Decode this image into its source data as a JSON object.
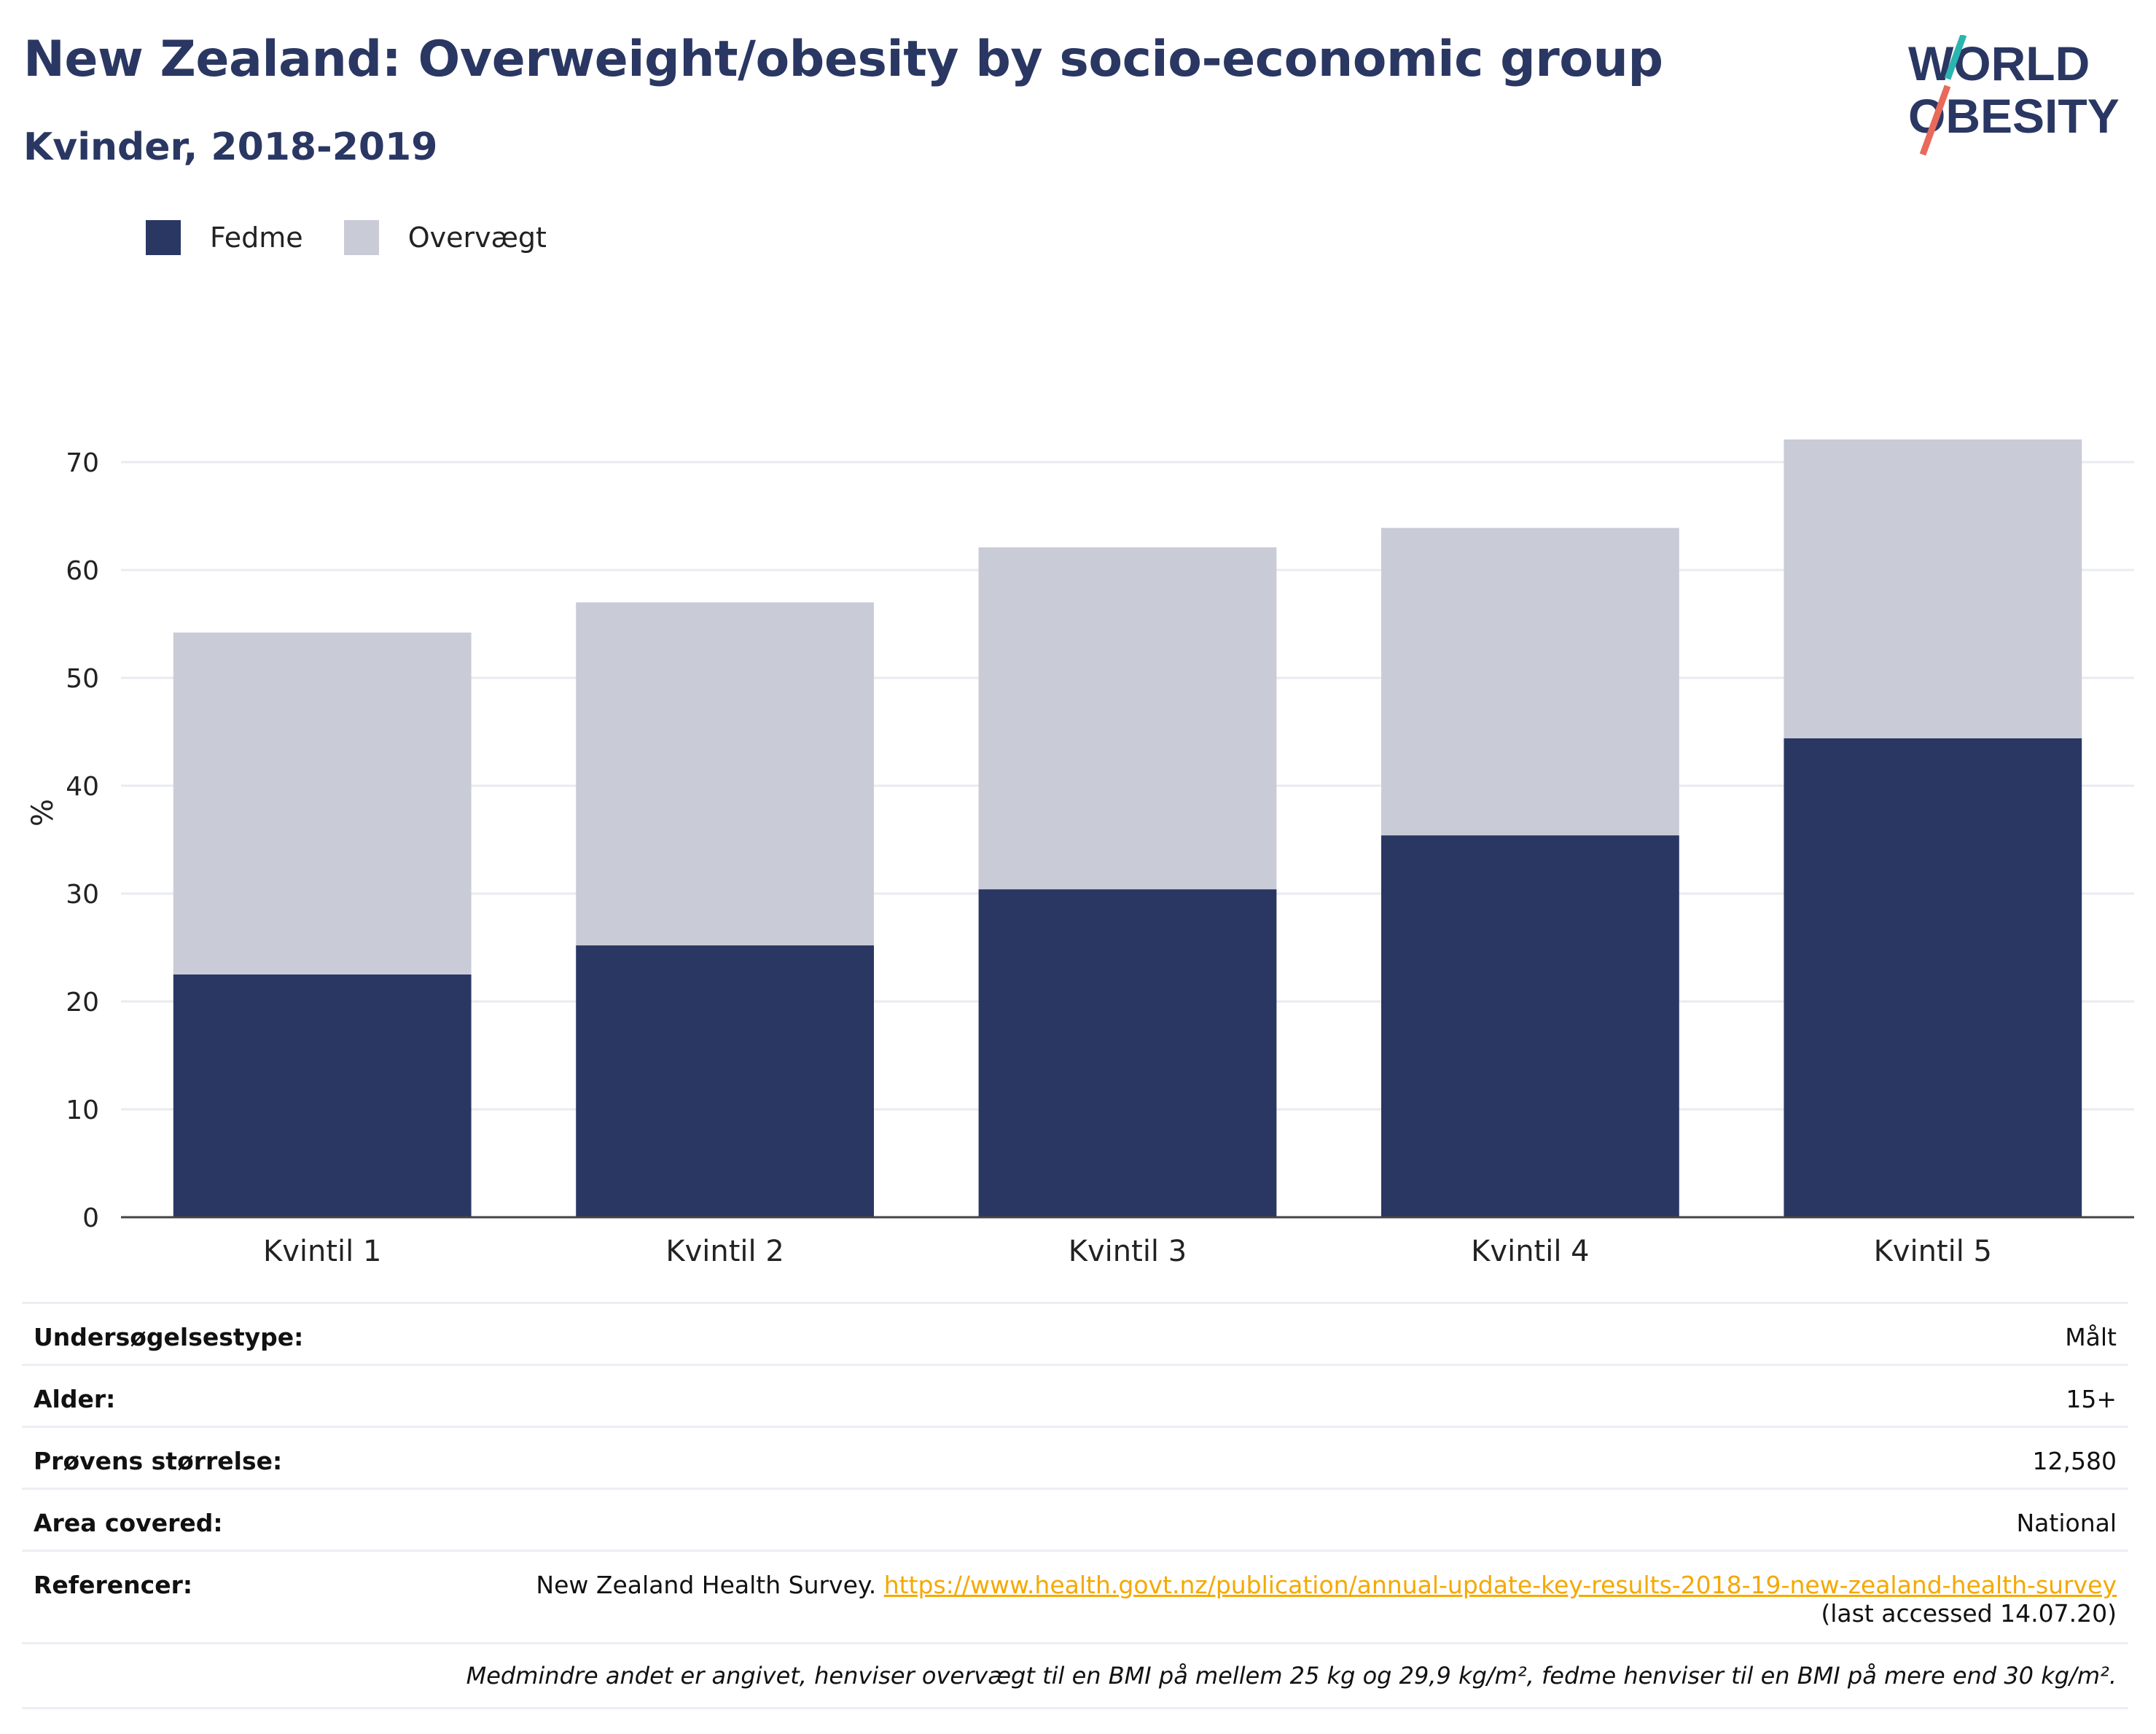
{
  "header": {
    "title": "New Zealand: Overweight/obesity by socio-economic group",
    "subtitle": "Kvinder, 2018-2019"
  },
  "logo": {
    "line1": "WORLD",
    "line2": "OBESITY",
    "accent_teal": "#2bb5b0",
    "accent_coral": "#e9695a"
  },
  "legend": [
    {
      "label": "Fedme",
      "color": "#2a3763"
    },
    {
      "label": "Overvægt",
      "color": "#c9cbd7"
    }
  ],
  "chart_data": {
    "type": "bar",
    "stacked": true,
    "categories": [
      "Kvintil 1",
      "Kvintil 2",
      "Kvintil 3",
      "Kvintil 4",
      "Kvintil 5"
    ],
    "series": [
      {
        "name": "Fedme",
        "color": "#2a3763",
        "values": [
          22.5,
          25.2,
          30.4,
          35.4,
          44.4
        ]
      },
      {
        "name": "Overvægt",
        "color": "#c9cbd7",
        "values": [
          31.7,
          31.8,
          31.7,
          28.5,
          27.7
        ]
      }
    ],
    "ylabel": "%",
    "xlabel": "",
    "ylim": [
      0,
      75
    ],
    "yticks": [
      0,
      10,
      20,
      30,
      40,
      50,
      60,
      70
    ],
    "grid": true,
    "legend_position": "top-left"
  },
  "info": {
    "rows": [
      {
        "key": "Undersøgelsestype:",
        "value": "Målt"
      },
      {
        "key": "Alder:",
        "value": "15+"
      },
      {
        "key": "Prøvens størrelse:",
        "value": "12,580"
      },
      {
        "key": "Area covered:",
        "value": "National"
      }
    ],
    "reference": {
      "key": "Referencer:",
      "text": "New Zealand Health Survey.",
      "link": "https://www.health.govt.nz/publication/annual-update-key-results-2018-19-new-zealand-health-survey",
      "accessed": "(last accessed 14.07.20)"
    },
    "note": "Medmindre andet er angivet, henviser overvægt til en BMI på mellem 25 kg og 29,9 kg/m², fedme henviser til en BMI på mere end 30 kg/m²."
  }
}
